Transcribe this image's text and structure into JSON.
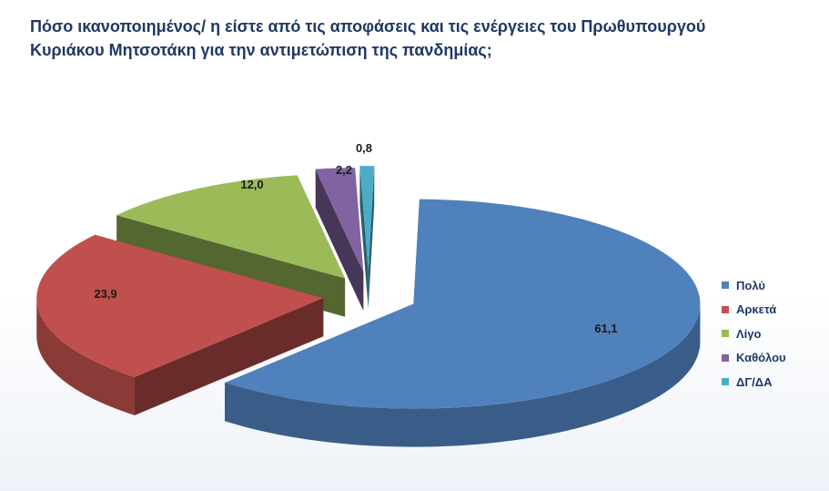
{
  "title": {
    "line1": "Πόσο ικανοποιημένος/ η είστε από τις αποφάσεις και τις ενέργειες του Πρωθυπουργού",
    "line2": "Κυριάκου Μητσοτάκη  για την αντιμετώπιση της πανδημίας;"
  },
  "chart_data": {
    "type": "pie",
    "style": "3d-exploded",
    "categories": [
      "Πολύ",
      "Αρκετά",
      "Λίγο",
      "Καθόλου",
      "ΔΓ/ΔΑ"
    ],
    "values": [
      61.1,
      23.9,
      12.0,
      2.2,
      0.8
    ],
    "data_labels": [
      "61,1",
      "23,9",
      "12,0",
      "2,2",
      "0,8"
    ],
    "colors": [
      "#4f81bd",
      "#c0504d",
      "#9bbb59",
      "#8064a2",
      "#4bacc6"
    ],
    "legend_position": "right"
  }
}
